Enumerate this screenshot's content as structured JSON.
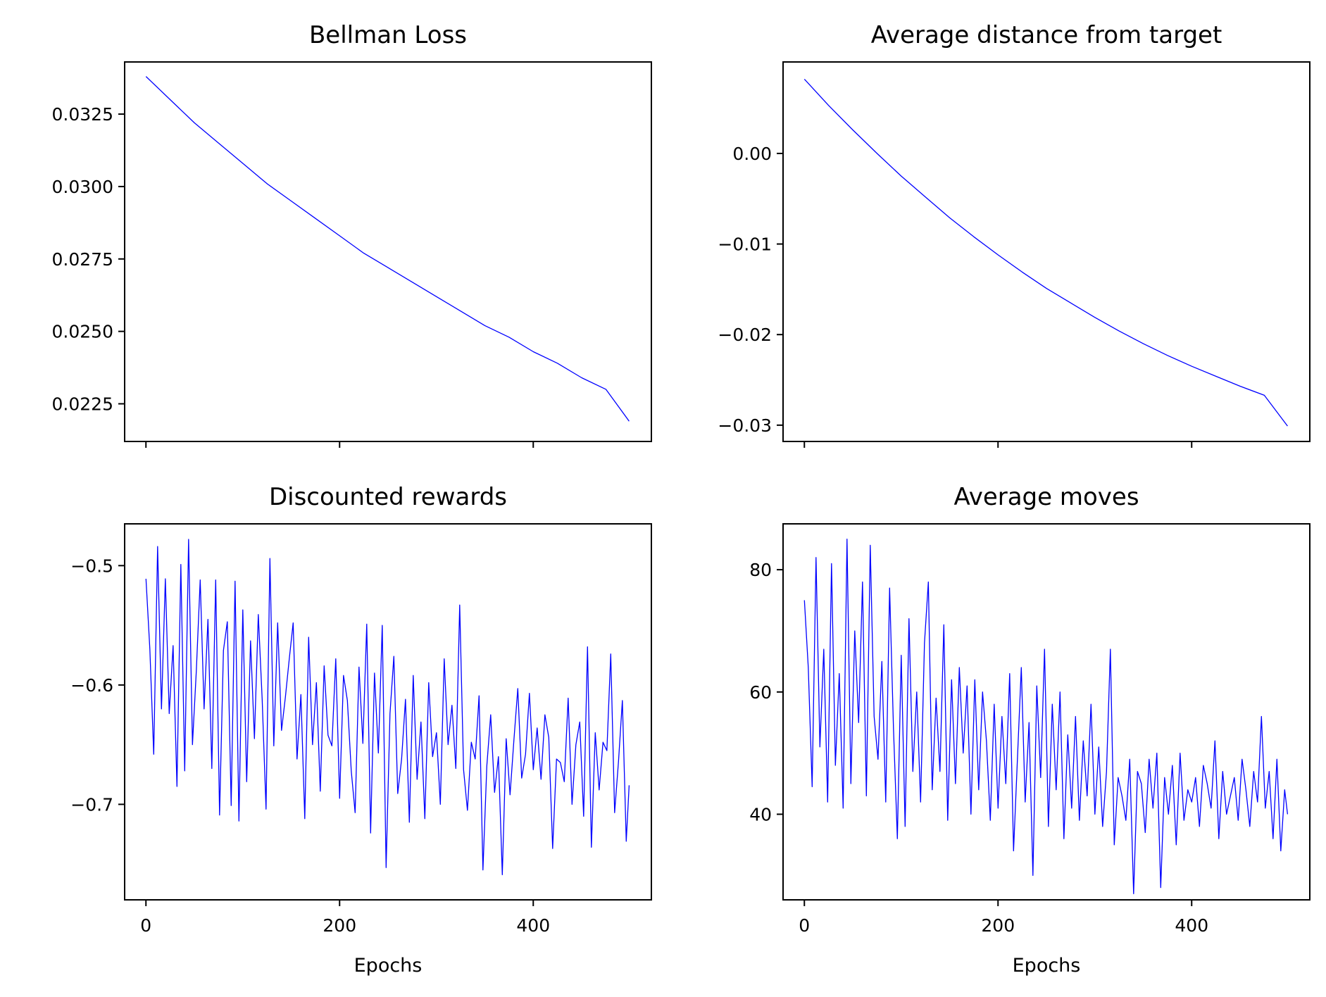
{
  "colors": {
    "line": "#0000ff",
    "axes": "#000000",
    "background": "#ffffff"
  },
  "chart_data": [
    {
      "type": "line",
      "title": "Bellman Loss",
      "xlabel": "",
      "ylabel": "",
      "xlim": [
        -22,
        522
      ],
      "ylim": [
        0.0212,
        0.0343
      ],
      "xticks": [
        0,
        200,
        400
      ],
      "xtick_labels_visible": false,
      "yticks": [
        0.0225,
        0.025,
        0.0275,
        0.03,
        0.0325
      ],
      "ytick_labels": [
        "0.0225",
        "0.0250",
        "0.0275",
        "0.0300",
        "0.0325"
      ],
      "grid": false,
      "series": [
        {
          "x": [
            0,
            25,
            50,
            75,
            100,
            125,
            150,
            175,
            200,
            225,
            250,
            275,
            300,
            325,
            350,
            375,
            400,
            425,
            450,
            475,
            499
          ],
          "values": [
            0.0338,
            0.033,
            0.0322,
            0.0315,
            0.0308,
            0.0301,
            0.0295,
            0.0289,
            0.0283,
            0.0277,
            0.0272,
            0.0267,
            0.0262,
            0.0257,
            0.0252,
            0.0248,
            0.0243,
            0.0239,
            0.0234,
            0.023,
            0.0219
          ]
        }
      ]
    },
    {
      "type": "line",
      "title": "Average distance from target",
      "xlabel": "",
      "ylabel": "",
      "xlim": [
        -22,
        522
      ],
      "ylim": [
        -0.0318,
        0.0101
      ],
      "xticks": [
        0,
        200,
        400
      ],
      "xtick_labels_visible": false,
      "yticks": [
        -0.03,
        -0.02,
        -0.01,
        0.0
      ],
      "ytick_labels": [
        "−0.03",
        "−0.02",
        "−0.01",
        "0.00"
      ],
      "grid": false,
      "series": [
        {
          "x": [
            0,
            25,
            50,
            75,
            100,
            125,
            150,
            175,
            200,
            225,
            250,
            275,
            300,
            325,
            350,
            375,
            400,
            425,
            450,
            475,
            499
          ],
          "values": [
            0.0082,
            0.0053,
            0.0026,
            0.0,
            -0.0025,
            -0.0048,
            -0.0071,
            -0.0092,
            -0.0112,
            -0.0131,
            -0.0149,
            -0.0165,
            -0.0181,
            -0.0196,
            -0.021,
            -0.0223,
            -0.0235,
            -0.0246,
            -0.0257,
            -0.0267,
            -0.0301
          ]
        }
      ]
    },
    {
      "type": "line",
      "title": "Discounted rewards",
      "xlabel": "Epochs",
      "ylabel": "",
      "xlim": [
        -22,
        522
      ],
      "ylim": [
        -0.78,
        -0.465
      ],
      "xticks": [
        0,
        200,
        400
      ],
      "xtick_labels": [
        "0",
        "200",
        "400"
      ],
      "yticks": [
        -0.7,
        -0.6,
        -0.5
      ],
      "ytick_labels": [
        "−0.7",
        "−0.6",
        "−0.5"
      ],
      "grid": false,
      "series": [
        {
          "x": [
            0,
            4,
            8,
            12,
            16,
            20,
            24,
            28,
            32,
            36,
            40,
            44,
            48,
            52,
            56,
            60,
            64,
            68,
            72,
            76,
            80,
            84,
            88,
            92,
            96,
            100,
            104,
            108,
            112,
            116,
            120,
            124,
            128,
            132,
            136,
            140,
            144,
            148,
            152,
            156,
            160,
            164,
            168,
            172,
            176,
            180,
            184,
            188,
            192,
            196,
            200,
            204,
            208,
            212,
            216,
            220,
            224,
            228,
            232,
            236,
            240,
            244,
            248,
            252,
            256,
            260,
            264,
            268,
            272,
            276,
            280,
            284,
            288,
            292,
            296,
            300,
            304,
            308,
            312,
            316,
            320,
            324,
            328,
            332,
            336,
            340,
            344,
            348,
            352,
            356,
            360,
            364,
            368,
            372,
            376,
            380,
            384,
            388,
            392,
            396,
            400,
            404,
            408,
            412,
            416,
            420,
            424,
            428,
            432,
            436,
            440,
            444,
            448,
            452,
            456,
            460,
            464,
            468,
            472,
            476,
            480,
            484,
            488,
            492,
            496,
            499
          ],
          "values": [
            -0.511,
            -0.57,
            -0.658,
            -0.484,
            -0.62,
            -0.511,
            -0.624,
            -0.567,
            -0.685,
            -0.499,
            -0.672,
            -0.478,
            -0.65,
            -0.588,
            -0.512,
            -0.62,
            -0.545,
            -0.67,
            -0.512,
            -0.709,
            -0.571,
            -0.547,
            -0.701,
            -0.513,
            -0.714,
            -0.537,
            -0.681,
            -0.563,
            -0.645,
            -0.541,
            -0.612,
            -0.704,
            -0.494,
            -0.651,
            -0.548,
            -0.638,
            -0.61,
            -0.578,
            -0.548,
            -0.662,
            -0.608,
            -0.712,
            -0.56,
            -0.65,
            -0.598,
            -0.689,
            -0.584,
            -0.642,
            -0.651,
            -0.578,
            -0.695,
            -0.592,
            -0.613,
            -0.672,
            -0.707,
            -0.585,
            -0.649,
            -0.549,
            -0.724,
            -0.59,
            -0.657,
            -0.55,
            -0.753,
            -0.624,
            -0.576,
            -0.691,
            -0.662,
            -0.612,
            -0.715,
            -0.592,
            -0.679,
            -0.631,
            -0.712,
            -0.598,
            -0.66,
            -0.64,
            -0.7,
            -0.578,
            -0.65,
            -0.617,
            -0.67,
            -0.533,
            -0.671,
            -0.705,
            -0.648,
            -0.662,
            -0.609,
            -0.755,
            -0.668,
            -0.625,
            -0.69,
            -0.66,
            -0.759,
            -0.645,
            -0.692,
            -0.646,
            -0.603,
            -0.678,
            -0.658,
            -0.607,
            -0.671,
            -0.636,
            -0.679,
            -0.625,
            -0.644,
            -0.737,
            -0.662,
            -0.665,
            -0.681,
            -0.611,
            -0.7,
            -0.65,
            -0.631,
            -0.71,
            -0.568,
            -0.736,
            -0.64,
            -0.688,
            -0.648,
            -0.655,
            -0.574,
            -0.707,
            -0.664,
            -0.613,
            -0.731,
            -0.684
          ]
        }
      ]
    },
    {
      "type": "line",
      "title": "Average moves",
      "xlabel": "Epochs",
      "ylabel": "",
      "xlim": [
        -22,
        522
      ],
      "ylim": [
        26,
        87.5
      ],
      "xticks": [
        0,
        200,
        400
      ],
      "xtick_labels": [
        "0",
        "200",
        "400"
      ],
      "yticks": [
        40,
        60,
        80
      ],
      "ytick_labels": [
        "40",
        "60",
        "80"
      ],
      "grid": false,
      "series": [
        {
          "x": [
            0,
            4,
            8,
            12,
            16,
            20,
            24,
            28,
            32,
            36,
            40,
            44,
            48,
            52,
            56,
            60,
            64,
            68,
            72,
            76,
            80,
            84,
            88,
            92,
            96,
            100,
            104,
            108,
            112,
            116,
            120,
            124,
            128,
            132,
            136,
            140,
            144,
            148,
            152,
            156,
            160,
            164,
            168,
            172,
            176,
            180,
            184,
            188,
            192,
            196,
            200,
            204,
            208,
            212,
            216,
            220,
            224,
            228,
            232,
            236,
            240,
            244,
            248,
            252,
            256,
            260,
            264,
            268,
            272,
            276,
            280,
            284,
            288,
            292,
            296,
            300,
            304,
            308,
            312,
            316,
            320,
            324,
            328,
            332,
            336,
            340,
            344,
            348,
            352,
            356,
            360,
            364,
            368,
            372,
            376,
            380,
            384,
            388,
            392,
            396,
            400,
            404,
            408,
            412,
            416,
            420,
            424,
            428,
            432,
            436,
            440,
            444,
            448,
            452,
            456,
            460,
            464,
            468,
            472,
            476,
            480,
            484,
            488,
            492,
            496,
            499
          ],
          "values": [
            75,
            64,
            44.5,
            82,
            51,
            67,
            42,
            81,
            48,
            63,
            41,
            85,
            45,
            70,
            55,
            78,
            43,
            84,
            56,
            49,
            65,
            42,
            77,
            54,
            36,
            66,
            38,
            72,
            47,
            60,
            42,
            68,
            78,
            44,
            59,
            47,
            71,
            39,
            62,
            45,
            64,
            50,
            61,
            40,
            62,
            44,
            60,
            52,
            39,
            58,
            41,
            56,
            45,
            63,
            34,
            49,
            64,
            42,
            55,
            30,
            61,
            46,
            67,
            38,
            58,
            44,
            60,
            36,
            53,
            41,
            56,
            39,
            52,
            43,
            58,
            40,
            51,
            38,
            47,
            67,
            35,
            46,
            43,
            39,
            49,
            27,
            47,
            45,
            37,
            49,
            41,
            50,
            28,
            46,
            40,
            48,
            35,
            50,
            39,
            44,
            42,
            46,
            38,
            48,
            45,
            41,
            52,
            36,
            47,
            40,
            43,
            46,
            39,
            49,
            44,
            38,
            47,
            42,
            56,
            41,
            47,
            36,
            49,
            34,
            44,
            40
          ]
        }
      ]
    }
  ]
}
